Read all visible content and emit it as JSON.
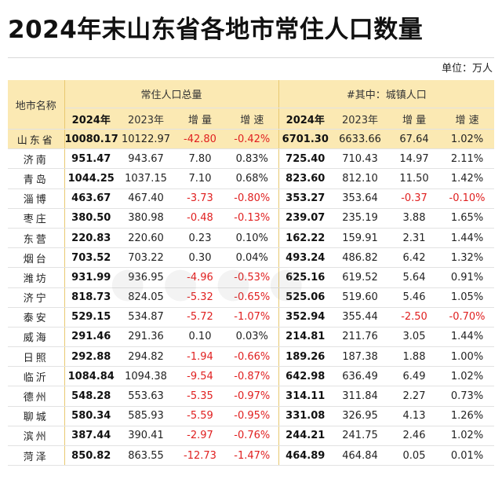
{
  "title": "2024年末山东省各地市常住人口数量",
  "unit": "单位：万人",
  "header": {
    "region": "地市名称",
    "group_total": "常住人口总量",
    "group_urban": "#其中：城镇人口",
    "sub": [
      "2024年",
      "2023年",
      "增 量",
      "增 速",
      "2024年",
      "2023年",
      "增 量",
      "增 速"
    ]
  },
  "rows": [
    {
      "name": "山东省",
      "t24": "10080.17",
      "t23": "10122.97",
      "td": "-42.80",
      "tg": "-0.42%",
      "u24": "6701.30",
      "u23": "6633.66",
      "ud": "67.64",
      "ug": "1.02%"
    },
    {
      "name": "济南",
      "t24": "951.47",
      "t23": "943.67",
      "td": "7.80",
      "tg": "0.83%",
      "u24": "725.40",
      "u23": "710.43",
      "ud": "14.97",
      "ug": "2.11%"
    },
    {
      "name": "青岛",
      "t24": "1044.25",
      "t23": "1037.15",
      "td": "7.10",
      "tg": "0.68%",
      "u24": "823.60",
      "u23": "812.10",
      "ud": "11.50",
      "ug": "1.42%"
    },
    {
      "name": "淄博",
      "t24": "463.67",
      "t23": "467.40",
      "td": "-3.73",
      "tg": "-0.80%",
      "u24": "353.27",
      "u23": "353.64",
      "ud": "-0.37",
      "ug": "-0.10%"
    },
    {
      "name": "枣庄",
      "t24": "380.50",
      "t23": "380.98",
      "td": "-0.48",
      "tg": "-0.13%",
      "u24": "239.07",
      "u23": "235.19",
      "ud": "3.88",
      "ug": "1.65%"
    },
    {
      "name": "东营",
      "t24": "220.83",
      "t23": "220.60",
      "td": "0.23",
      "tg": "0.10%",
      "u24": "162.22",
      "u23": "159.91",
      "ud": "2.31",
      "ug": "1.44%"
    },
    {
      "name": "烟台",
      "t24": "703.52",
      "t23": "703.22",
      "td": "0.30",
      "tg": "0.04%",
      "u24": "493.24",
      "u23": "486.82",
      "ud": "6.42",
      "ug": "1.32%"
    },
    {
      "name": "潍坊",
      "t24": "931.99",
      "t23": "936.95",
      "td": "-4.96",
      "tg": "-0.53%",
      "u24": "625.16",
      "u23": "619.52",
      "ud": "5.64",
      "ug": "0.91%"
    },
    {
      "name": "济宁",
      "t24": "818.73",
      "t23": "824.05",
      "td": "-5.32",
      "tg": "-0.65%",
      "u24": "525.06",
      "u23": "519.60",
      "ud": "5.46",
      "ug": "1.05%"
    },
    {
      "name": "泰安",
      "t24": "529.15",
      "t23": "534.87",
      "td": "-5.72",
      "tg": "-1.07%",
      "u24": "352.94",
      "u23": "355.44",
      "ud": "-2.50",
      "ug": "-0.70%"
    },
    {
      "name": "威海",
      "t24": "291.46",
      "t23": "291.36",
      "td": "0.10",
      "tg": "0.03%",
      "u24": "214.81",
      "u23": "211.76",
      "ud": "3.05",
      "ug": "1.44%"
    },
    {
      "name": "日照",
      "t24": "292.88",
      "t23": "294.82",
      "td": "-1.94",
      "tg": "-0.66%",
      "u24": "189.26",
      "u23": "187.38",
      "ud": "1.88",
      "ug": "1.00%"
    },
    {
      "name": "临沂",
      "t24": "1084.84",
      "t23": "1094.38",
      "td": "-9.54",
      "tg": "-0.87%",
      "u24": "642.98",
      "u23": "636.49",
      "ud": "6.49",
      "ug": "1.02%"
    },
    {
      "name": "德州",
      "t24": "548.28",
      "t23": "553.63",
      "td": "-5.35",
      "tg": "-0.97%",
      "u24": "314.11",
      "u23": "311.84",
      "ud": "2.27",
      "ug": "0.73%"
    },
    {
      "name": "聊城",
      "t24": "580.34",
      "t23": "585.93",
      "td": "-5.59",
      "tg": "-0.95%",
      "u24": "331.08",
      "u23": "326.95",
      "ud": "4.13",
      "ug": "1.26%"
    },
    {
      "name": "滨州",
      "t24": "387.44",
      "t23": "390.41",
      "td": "-2.97",
      "tg": "-0.76%",
      "u24": "244.21",
      "u23": "241.75",
      "ud": "2.46",
      "ug": "1.02%"
    },
    {
      "name": "菏泽",
      "t24": "850.82",
      "t23": "863.55",
      "td": "-12.73",
      "tg": "-1.47%",
      "u24": "464.89",
      "u23": "464.84",
      "ud": "0.05",
      "ug": "0.01%"
    }
  ],
  "colors": {
    "header_bg": "#fbe9b3",
    "negative": "#e02020"
  }
}
